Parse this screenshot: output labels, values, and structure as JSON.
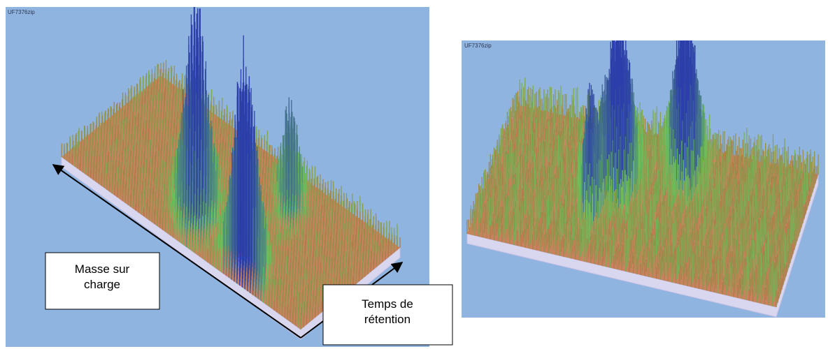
{
  "panels": [
    {
      "title": "UF7376zip",
      "labels": [
        "Masse sur charge",
        "Temps de rétention"
      ]
    },
    {
      "title": "UF7376zip"
    }
  ]
}
